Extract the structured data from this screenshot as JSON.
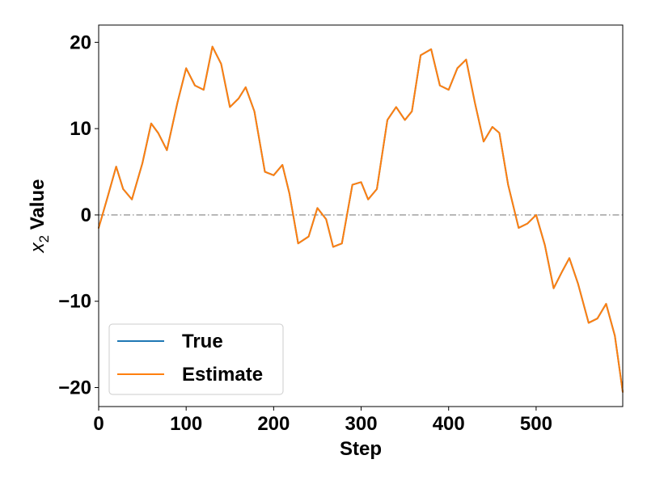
{
  "chart_data": {
    "type": "line",
    "xlabel": "Step",
    "ylabel_main": "x",
    "ylabel_sub": "2",
    "ylabel_rest": " Value",
    "xlim": [
      0,
      599
    ],
    "ylim": [
      -22.2,
      22.0
    ],
    "xticks": [
      0,
      100,
      200,
      300,
      400,
      500
    ],
    "yticks": [
      -20,
      -10,
      0,
      10,
      20
    ],
    "reference_line": {
      "y": 0,
      "style": "dash-dot",
      "color": "#808080"
    },
    "legend": {
      "position": "lower-left"
    },
    "series": [
      {
        "name": "True",
        "color": "#1f77b4",
        "x": [
          0,
          10,
          20,
          28,
          38,
          50,
          60,
          68,
          78,
          90,
          100,
          110,
          120,
          130,
          140,
          150,
          160,
          168,
          178,
          190,
          200,
          210,
          218,
          228,
          240,
          250,
          260,
          268,
          278,
          290,
          300,
          308,
          318,
          330,
          340,
          350,
          358,
          368,
          380,
          390,
          400,
          410,
          420,
          430,
          440,
          450,
          458,
          468,
          480,
          490,
          500,
          510,
          520,
          530,
          538,
          548,
          560,
          570,
          580,
          590,
          599
        ],
        "y": [
          -1.5,
          2.0,
          5.6,
          3.0,
          1.8,
          6.0,
          10.6,
          9.5,
          7.5,
          13.0,
          17.0,
          15.0,
          14.5,
          19.5,
          17.5,
          12.5,
          13.5,
          14.8,
          12.0,
          5.0,
          4.6,
          5.8,
          2.5,
          -3.3,
          -2.5,
          0.8,
          -0.5,
          -3.7,
          -3.3,
          3.5,
          3.8,
          1.8,
          3.0,
          11.0,
          12.5,
          11.0,
          12.0,
          18.5,
          19.2,
          15.0,
          14.5,
          17.0,
          18.0,
          13.0,
          8.5,
          10.2,
          9.5,
          3.5,
          -1.5,
          -1.0,
          0.0,
          -3.5,
          -8.5,
          -6.5,
          -5.0,
          -8.0,
          -12.5,
          -12.0,
          -10.3,
          -14.0,
          -20.5
        ]
      },
      {
        "name": "Estimate",
        "color": "#ff7f0e",
        "x": [
          0,
          10,
          20,
          28,
          38,
          50,
          60,
          68,
          78,
          90,
          100,
          110,
          120,
          130,
          140,
          150,
          160,
          168,
          178,
          190,
          200,
          210,
          218,
          228,
          240,
          250,
          260,
          268,
          278,
          290,
          300,
          308,
          318,
          330,
          340,
          350,
          358,
          368,
          380,
          390,
          400,
          410,
          420,
          430,
          440,
          450,
          458,
          468,
          480,
          490,
          500,
          510,
          520,
          530,
          538,
          548,
          560,
          570,
          580,
          590,
          599
        ],
        "y": [
          -1.5,
          2.0,
          5.6,
          3.0,
          1.8,
          6.0,
          10.6,
          9.5,
          7.5,
          13.0,
          17.0,
          15.0,
          14.5,
          19.5,
          17.5,
          12.5,
          13.5,
          14.8,
          12.0,
          5.0,
          4.6,
          5.8,
          2.5,
          -3.3,
          -2.5,
          0.8,
          -0.5,
          -3.7,
          -3.3,
          3.5,
          3.8,
          1.8,
          3.0,
          11.0,
          12.5,
          11.0,
          12.0,
          18.5,
          19.2,
          15.0,
          14.5,
          17.0,
          18.0,
          13.0,
          8.5,
          10.2,
          9.5,
          3.5,
          -1.5,
          -1.0,
          0.0,
          -3.5,
          -8.5,
          -6.5,
          -5.0,
          -8.0,
          -12.5,
          -12.0,
          -10.3,
          -14.0,
          -20.5
        ]
      }
    ]
  }
}
